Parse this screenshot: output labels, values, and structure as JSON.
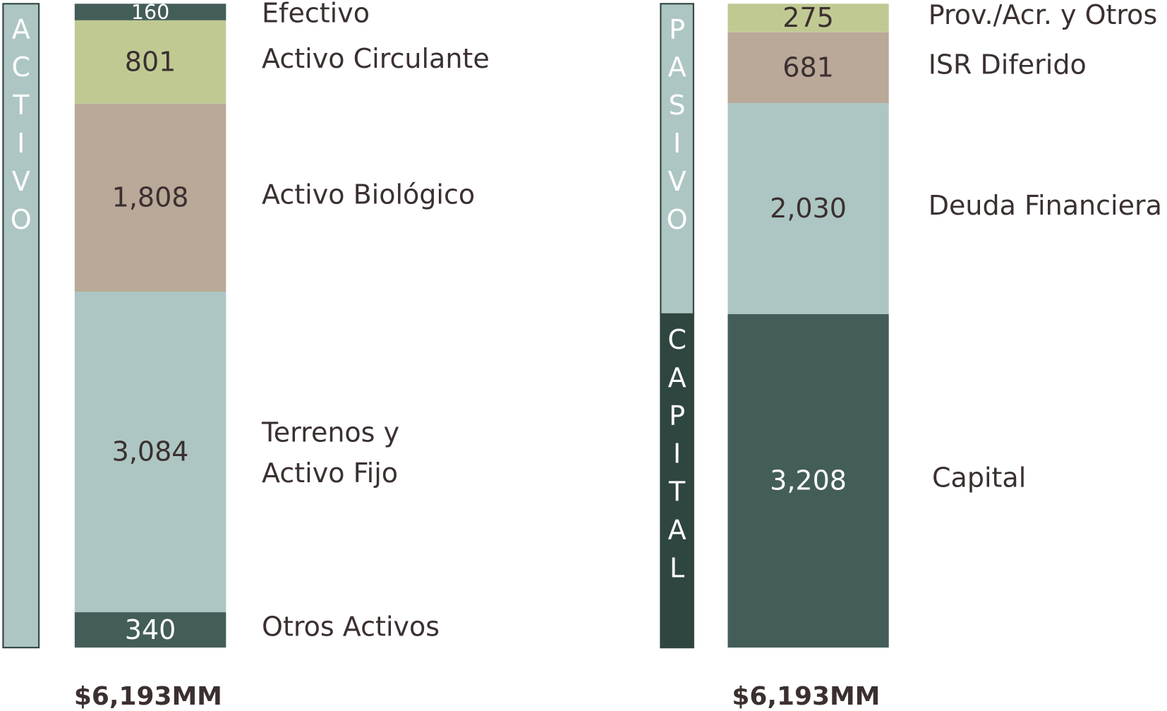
{
  "chart_data": [
    {
      "type": "bar",
      "stacked": true,
      "group_labels": [
        {
          "label": "ACTIVO",
          "color": "#adc6c3"
        }
      ],
      "categories": [
        "Efectivo",
        "Activo Circulante",
        "Activo Biológico",
        "Terrenos y\nActivo Fijo",
        "Otros Activos"
      ],
      "values": [
        160,
        801,
        1808,
        3084,
        340
      ],
      "value_labels": [
        "160",
        "801",
        "1,808",
        "3,084",
        "340"
      ],
      "colors": [
        "#435d58",
        "#c1c993",
        "#baa898",
        "#adc6c3",
        "#435d58"
      ],
      "ylim": [
        0,
        6193
      ],
      "total_label": "$6,193MM"
    },
    {
      "type": "bar",
      "stacked": true,
      "group_labels": [
        {
          "label": "PASIVO",
          "color": "#adc6c3"
        },
        {
          "label": "CAPITAL",
          "color": "#2f4540"
        }
      ],
      "categories": [
        "Prov./Acr. y Otros",
        "ISR Diferido",
        "Deuda Financiera",
        "Capital"
      ],
      "values": [
        275,
        681,
        2030,
        3208
      ],
      "value_labels": [
        "275",
        "681",
        "2,030",
        "3,208"
      ],
      "colors": [
        "#c1c993",
        "#baa898",
        "#adc6c3",
        "#435d58"
      ],
      "ylim": [
        0,
        6194
      ],
      "total_label": "$6,193MM"
    }
  ]
}
